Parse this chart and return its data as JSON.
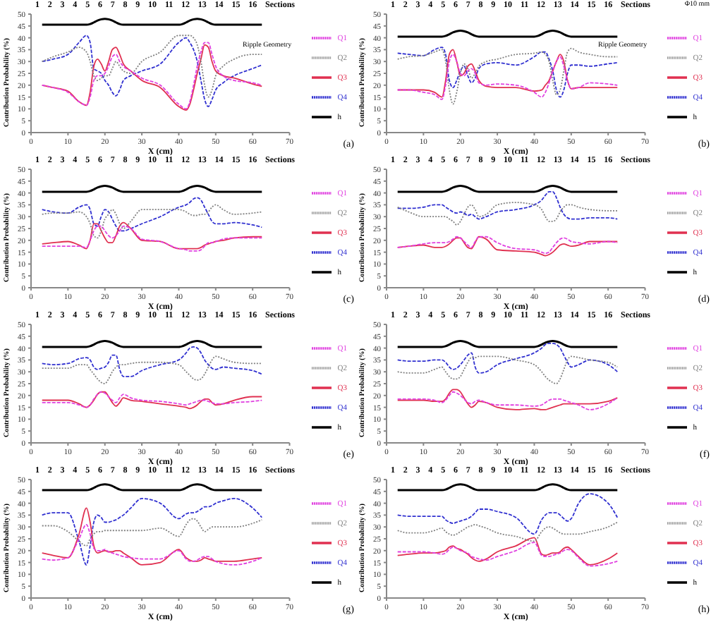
{
  "chart_data": [
    {
      "type": "line",
      "xlabel": "X (cm)",
      "ylabel": "Contribution Probability (%)",
      "xlim": [
        0,
        70
      ],
      "xticks": [
        0,
        10,
        20,
        30,
        40,
        50,
        60,
        70
      ],
      "ylim": [
        0,
        50
      ],
      "yticks": [
        0,
        5,
        10,
        15,
        20,
        25,
        30,
        35,
        40,
        45,
        50
      ],
      "legend": "right",
      "x": [
        3,
        6,
        10,
        13,
        15,
        16,
        17,
        18,
        19,
        20,
        21,
        22,
        23,
        24,
        25,
        27,
        30,
        35,
        40,
        42,
        43,
        44,
        45,
        46,
        47,
        48,
        49,
        50,
        52,
        55,
        60,
        62.5
      ],
      "series": [
        {
          "name": "Q1",
          "color": "#e040e0",
          "line_style": "dashed",
          "values": [
            20,
            19,
            17,
            13,
            11.5,
            15,
            22,
            24,
            24,
            25,
            28,
            32,
            33,
            30,
            28,
            26,
            23,
            20,
            12,
            10,
            13,
            20,
            28,
            34,
            38,
            38,
            33,
            28,
            24,
            22,
            21,
            20
          ]
        },
        {
          "name": "Q2",
          "color": "#808080",
          "line_style": "dotted",
          "values": [
            30,
            32,
            34,
            36,
            34,
            30,
            24,
            22,
            23,
            24,
            24,
            27,
            30,
            28,
            26,
            25,
            30,
            34,
            41,
            41,
            41,
            40,
            37,
            30,
            20,
            15,
            18,
            24,
            28,
            31,
            33,
            33
          ]
        },
        {
          "name": "Q3",
          "color": "#e03050",
          "line_style": "solid",
          "values": [
            20,
            19,
            17.5,
            13,
            11.5,
            17,
            28,
            31,
            29,
            26,
            30,
            35,
            36,
            33,
            29,
            26,
            22,
            19,
            11,
            9.5,
            12,
            18,
            25,
            31,
            37,
            36,
            30,
            26,
            24,
            23,
            20.5,
            19.5
          ]
        },
        {
          "name": "Q4",
          "color": "#3030d0",
          "line_style": "dashed",
          "values": [
            30,
            31,
            33,
            38,
            41,
            38,
            27,
            26,
            25,
            22,
            20,
            17,
            15.5,
            18,
            22,
            24,
            26,
            29,
            38,
            40,
            38,
            35,
            30,
            22,
            14,
            11,
            14,
            18,
            21,
            24,
            27,
            28.5
          ]
        },
        {
          "name": "h",
          "color": "#000000",
          "line_style": "solid",
          "x": [
            3,
            15,
            16,
            17,
            18,
            19,
            20,
            21,
            22,
            23,
            24,
            25,
            40,
            41,
            42,
            43,
            44,
            45,
            46,
            47,
            48,
            49,
            50,
            62.5
          ],
          "values": [
            45.5,
            45.5,
            45.8,
            46.5,
            47.3,
            47.8,
            48,
            47.8,
            47.3,
            46.5,
            45.8,
            45.5,
            45.5,
            45.8,
            46.5,
            47.3,
            47.8,
            48,
            47.8,
            47.3,
            46.5,
            45.8,
            45.5,
            45.5
          ]
        }
      ],
      "annotations": [
        "(a)",
        "1 2 3 4 5 6 7 8 9 10 11 12 13 14 15 16 Sections",
        "Ripple Geometry"
      ]
    },
    {
      "type": "line",
      "xlabel": "X (cm)",
      "ylabel": "Contribution Probability (%)",
      "xlim": [
        0,
        70
      ],
      "xticks": [
        0,
        10,
        20,
        30,
        40,
        50,
        60,
        70
      ],
      "ylim": [
        0,
        50
      ],
      "yticks": [
        0,
        5,
        10,
        15,
        20,
        25,
        30,
        35,
        40,
        45,
        50
      ],
      "legend": "right",
      "x": [
        3,
        6,
        10,
        13,
        15,
        16,
        17,
        18,
        19,
        20,
        21,
        22,
        23,
        24,
        25,
        27,
        30,
        35,
        40,
        42,
        43,
        44,
        45,
        46,
        47,
        48,
        49,
        50,
        52,
        55,
        60,
        62.5
      ],
      "series": [
        {
          "name": "Q1",
          "color": "#e040e0",
          "line_style": "dashed",
          "values": [
            18,
            18,
            17,
            16,
            14,
            20,
            30,
            33,
            30,
            25,
            24,
            26,
            27,
            25,
            21,
            20,
            20.5,
            20,
            17,
            15,
            17,
            21,
            26,
            30,
            32,
            28,
            22,
            18.5,
            19,
            21,
            20.5,
            20
          ]
        },
        {
          "name": "Q2",
          "color": "#808080",
          "line_style": "dotted",
          "values": [
            31,
            32,
            32.5,
            34,
            35,
            30,
            18,
            12,
            17,
            25,
            29,
            27,
            23,
            25,
            28,
            30,
            31,
            33,
            33.5,
            34,
            33,
            30,
            22,
            16,
            18,
            26,
            34,
            35.5,
            34,
            33,
            32,
            32
          ]
        },
        {
          "name": "Q3",
          "color": "#e03050",
          "line_style": "solid",
          "values": [
            18,
            18,
            18,
            17,
            15,
            22,
            33,
            35,
            30,
            24,
            25,
            28,
            29,
            26,
            22,
            19.5,
            19,
            19,
            17.5,
            18,
            20,
            22,
            26,
            30,
            33,
            30,
            22,
            18.5,
            19,
            19,
            19,
            19
          ]
        },
        {
          "name": "Q4",
          "color": "#3030d0",
          "line_style": "dashed",
          "values": [
            33.5,
            33,
            32.5,
            35,
            36,
            33,
            22,
            19,
            22,
            26,
            28,
            24,
            21,
            23,
            27,
            29,
            29.5,
            28.5,
            32,
            34,
            34,
            31,
            26,
            18,
            15,
            18,
            25,
            28.5,
            28.5,
            28,
            29,
            29.5
          ]
        },
        {
          "name": "h",
          "color": "#000000",
          "line_style": "solid",
          "x": [
            3,
            15,
            16,
            17,
            18,
            19,
            20,
            21,
            22,
            23,
            24,
            25,
            40,
            41,
            42,
            43,
            44,
            45,
            46,
            47,
            48,
            49,
            50,
            62.5
          ],
          "values": [
            40.5,
            40.5,
            40.8,
            41.5,
            42.3,
            42.8,
            43,
            42.8,
            42.3,
            41.5,
            40.8,
            40.5,
            40.5,
            40.8,
            41.5,
            42.3,
            42.8,
            43,
            42.8,
            42.3,
            41.5,
            40.8,
            40.5,
            40.5
          ]
        }
      ],
      "annotations": [
        "(b)",
        "1 2 3 4 5 6 7 8 9 10 11 12 13 14 15 16 Sections",
        "Ripple Geometry",
        "Φ10 mm"
      ]
    },
    {
      "type": "line",
      "xlabel": "X (cm)",
      "ylabel": "Contribution Probability (%)",
      "xlim": [
        0,
        70
      ],
      "xticks": [
        0,
        10,
        20,
        30,
        40,
        50,
        60,
        70
      ],
      "ylim": [
        0,
        50
      ],
      "yticks": [
        0,
        5,
        10,
        15,
        20,
        25,
        30,
        35,
        40,
        45,
        50
      ],
      "legend": "right",
      "x": [
        3,
        6,
        10,
        13,
        15,
        16,
        17,
        18,
        19,
        20,
        21,
        22,
        23,
        24,
        25,
        27,
        30,
        35,
        40,
        42,
        43,
        44,
        45,
        46,
        47,
        48,
        49,
        50,
        52,
        55,
        60,
        62.5
      ],
      "series": [
        {
          "name": "Q1",
          "color": "#e040e0",
          "line_style": "dashed",
          "values": [
            17.5,
            17.5,
            17.5,
            17.5,
            17,
            20,
            24,
            26,
            26,
            24,
            22,
            21,
            22,
            24,
            26,
            25,
            20.5,
            19.5,
            16.5,
            16,
            15.5,
            15.5,
            15.5,
            16,
            17.5,
            19,
            19,
            19.5,
            20.5,
            21,
            21,
            21
          ]
        },
        {
          "name": "Q2",
          "color": "#808080",
          "line_style": "dotted",
          "values": [
            31,
            31.5,
            31.5,
            32,
            30,
            27,
            22,
            21,
            24,
            29,
            31,
            33,
            31,
            27,
            25,
            28,
            33,
            33,
            33,
            32,
            31,
            30.5,
            30.5,
            31,
            31,
            32,
            34,
            35,
            33,
            31,
            31.5,
            32
          ]
        },
        {
          "name": "Q3",
          "color": "#e03050",
          "line_style": "solid",
          "values": [
            18.5,
            19,
            19.5,
            18,
            16.5,
            20,
            27,
            27,
            24,
            21,
            19,
            19,
            22,
            26,
            27.5,
            25,
            20,
            19.5,
            16.5,
            16.5,
            16.5,
            16.5,
            16.5,
            17,
            18,
            18.5,
            19,
            19.5,
            20,
            21,
            21.5,
            21.5
          ]
        },
        {
          "name": "Q4",
          "color": "#3030d0",
          "line_style": "dashed",
          "values": [
            33,
            32,
            31.5,
            34,
            35,
            33,
            27,
            26,
            30,
            33,
            32,
            29,
            26,
            24,
            24,
            25,
            27,
            30,
            34,
            35,
            36,
            37.5,
            38,
            37,
            34,
            31,
            28,
            27,
            27,
            27.5,
            26.5,
            25.5
          ]
        },
        {
          "name": "h",
          "color": "#000000",
          "line_style": "solid",
          "x": [
            3,
            15,
            16,
            17,
            18,
            19,
            20,
            21,
            22,
            23,
            24,
            25,
            40,
            41,
            42,
            43,
            44,
            45,
            46,
            47,
            48,
            49,
            50,
            62.5
          ],
          "values": [
            40.5,
            40.5,
            40.8,
            41.5,
            42.3,
            42.8,
            43,
            42.8,
            42.3,
            41.5,
            40.8,
            40.5,
            40.5,
            40.8,
            41.5,
            42.3,
            42.8,
            43,
            42.8,
            42.3,
            41.5,
            40.8,
            40.5,
            40.5
          ]
        }
      ],
      "annotations": [
        "(c)",
        "1 2 3 4 5 6 7 8 9 10 11 12 13 14 15 16 Sections"
      ]
    },
    {
      "type": "line",
      "xlabel": "X (cm)",
      "ylabel": "Contribution Probability (%)",
      "xlim": [
        0,
        70
      ],
      "xticks": [
        0,
        10,
        20,
        30,
        40,
        50,
        60,
        70
      ],
      "ylim": [
        0,
        50
      ],
      "yticks": [
        0,
        5,
        10,
        15,
        20,
        25,
        30,
        35,
        40,
        45,
        50
      ],
      "legend": "right",
      "x": [
        3,
        6,
        10,
        13,
        15,
        16,
        17,
        18,
        19,
        20,
        21,
        22,
        23,
        24,
        25,
        27,
        30,
        35,
        40,
        42,
        43,
        44,
        45,
        46,
        47,
        48,
        49,
        50,
        52,
        55,
        60,
        62.5
      ],
      "series": [
        {
          "name": "Q1",
          "color": "#e040e0",
          "line_style": "dashed",
          "values": [
            17,
            17.5,
            18.5,
            19,
            19,
            19,
            19.5,
            20.5,
            21.5,
            21,
            19.5,
            18,
            17,
            19.5,
            21.5,
            21.5,
            19,
            16.5,
            16,
            15,
            14.5,
            15,
            17,
            19,
            20.5,
            21,
            20.5,
            19.5,
            19,
            18.5,
            19.5,
            19
          ]
        },
        {
          "name": "Q2",
          "color": "#808080",
          "line_style": "dotted",
          "values": [
            34,
            32,
            30,
            30,
            30,
            30,
            29,
            28,
            26.5,
            28,
            31,
            34,
            35,
            33,
            30,
            31,
            35,
            36,
            35,
            33,
            30,
            28,
            28,
            29,
            32,
            34,
            35,
            35,
            34,
            33,
            32.5,
            32.5
          ]
        },
        {
          "name": "Q3",
          "color": "#e03050",
          "line_style": "solid",
          "values": [
            17,
            17.5,
            18,
            17,
            17,
            17.5,
            18.5,
            20,
            21,
            21,
            19,
            17,
            16.5,
            19,
            21.5,
            20.5,
            16,
            15.5,
            15,
            14,
            13.5,
            14,
            15,
            16.5,
            18,
            18.5,
            18,
            17.5,
            18,
            19.5,
            19.5,
            19.5
          ]
        },
        {
          "name": "Q4",
          "color": "#3030d0",
          "line_style": "dashed",
          "values": [
            33.5,
            33.5,
            34,
            35,
            35,
            34,
            33,
            32,
            31.5,
            32,
            31.5,
            30.5,
            31,
            30,
            29,
            30,
            32,
            33,
            35,
            37,
            39,
            40.5,
            40.5,
            38,
            34,
            31,
            29.5,
            29,
            29,
            29.5,
            29.5,
            29
          ]
        },
        {
          "name": "h",
          "color": "#000000",
          "line_style": "solid",
          "x": [
            3,
            15,
            16,
            17,
            18,
            19,
            20,
            21,
            22,
            23,
            24,
            25,
            40,
            41,
            42,
            43,
            44,
            45,
            46,
            47,
            48,
            49,
            50,
            62.5
          ],
          "values": [
            40.5,
            40.5,
            40.8,
            41.5,
            42.3,
            42.8,
            43,
            42.8,
            42.3,
            41.5,
            40.8,
            40.5,
            40.5,
            40.8,
            41.5,
            42.3,
            42.8,
            43,
            42.8,
            42.3,
            41.5,
            40.8,
            40.5,
            40.5
          ]
        }
      ],
      "annotations": [
        "(d)",
        "1 2 3 4 5 6 7 8 9 10 11 12 13 14 15 16 Sections"
      ]
    },
    {
      "type": "line",
      "xlabel": "X (cm)",
      "ylabel": "Contribution Probability (%)",
      "xlim": [
        0,
        70
      ],
      "xticks": [
        0,
        10,
        20,
        30,
        40,
        50,
        60,
        70
      ],
      "ylim": [
        0,
        50
      ],
      "yticks": [
        0,
        5,
        10,
        15,
        20,
        25,
        30,
        35,
        40,
        45,
        50
      ],
      "legend": "right",
      "x": [
        3,
        6,
        10,
        13,
        15,
        16,
        17,
        18,
        19,
        20,
        21,
        22,
        23,
        24,
        25,
        27,
        30,
        35,
        40,
        42,
        43,
        44,
        45,
        46,
        47,
        48,
        49,
        50,
        52,
        55,
        60,
        62.5
      ],
      "series": [
        {
          "name": "Q1",
          "color": "#e040e0",
          "line_style": "dashed",
          "values": [
            17,
            17,
            17,
            16,
            15,
            16,
            18.5,
            20.5,
            21.5,
            21,
            19.5,
            18,
            17,
            19,
            20.5,
            19,
            18,
            17.5,
            16.5,
            16,
            16.5,
            17,
            17.5,
            18,
            18,
            17.5,
            17,
            16.5,
            16.5,
            17,
            17.5,
            18
          ]
        },
        {
          "name": "Q2",
          "color": "#808080",
          "line_style": "dotted",
          "values": [
            31.5,
            31.5,
            31.5,
            33,
            33,
            31,
            29,
            27,
            25.5,
            25,
            27,
            30,
            32,
            33,
            33,
            33.5,
            34,
            34,
            33,
            30,
            28.5,
            27,
            26.5,
            27,
            29,
            32,
            35,
            36.5,
            35.5,
            34,
            33.5,
            33.5
          ]
        },
        {
          "name": "Q3",
          "color": "#e03050",
          "line_style": "solid",
          "values": [
            18,
            18,
            18,
            16.5,
            15,
            16,
            18,
            20.5,
            21.5,
            21.5,
            19.5,
            17,
            15.5,
            17,
            19,
            18,
            17.5,
            16.5,
            15.5,
            15,
            14.5,
            15,
            16,
            17.5,
            18.5,
            18.5,
            17,
            16,
            16.5,
            18,
            19.5,
            19.5
          ]
        },
        {
          "name": "Q4",
          "color": "#3030d0",
          "line_style": "dashed",
          "values": [
            33.5,
            33,
            33.5,
            35.5,
            36,
            35,
            32,
            31,
            31.5,
            32,
            34,
            37,
            37,
            31,
            28,
            28,
            30.5,
            33,
            35,
            38,
            40,
            40.5,
            40,
            38,
            35,
            33,
            31.5,
            31,
            32,
            31.5,
            30.5,
            29
          ]
        },
        {
          "name": "h",
          "color": "#000000",
          "line_style": "solid",
          "x": [
            3,
            15,
            16,
            17,
            18,
            19,
            20,
            21,
            22,
            23,
            24,
            25,
            40,
            41,
            42,
            43,
            44,
            45,
            46,
            47,
            48,
            49,
            50,
            62.5
          ],
          "values": [
            40.5,
            40.5,
            40.8,
            41.5,
            42.3,
            42.8,
            43,
            42.8,
            42.3,
            41.5,
            40.8,
            40.5,
            40.5,
            40.8,
            41.5,
            42.3,
            42.8,
            43,
            42.8,
            42.3,
            41.5,
            40.8,
            40.5,
            40.5
          ]
        }
      ],
      "annotations": [
        "(e)",
        "1 2 3 4 5 6 7 8 9 10 11 12 13 14 15 16 Sections"
      ]
    },
    {
      "type": "line",
      "xlabel": "X (cm)",
      "ylabel": "Contribution Probability (%)",
      "xlim": [
        0,
        70
      ],
      "xticks": [
        0,
        10,
        20,
        30,
        40,
        50,
        60,
        70
      ],
      "ylim": [
        0,
        50
      ],
      "yticks": [
        0,
        5,
        10,
        15,
        20,
        25,
        30,
        35,
        40,
        45,
        50
      ],
      "legend": "right",
      "x": [
        3,
        6,
        10,
        13,
        15,
        16,
        17,
        18,
        19,
        20,
        21,
        22,
        23,
        24,
        25,
        27,
        30,
        35,
        40,
        42,
        43,
        44,
        45,
        46,
        47,
        48,
        49,
        50,
        52,
        55,
        60,
        62.5
      ],
      "series": [
        {
          "name": "Q1",
          "color": "#e040e0",
          "line_style": "dashed",
          "values": [
            18.5,
            18.5,
            18.5,
            18,
            17,
            18,
            20,
            21.5,
            21,
            20,
            18.5,
            17,
            16.5,
            17.5,
            18,
            17,
            16,
            16,
            15.5,
            16,
            17,
            18,
            18.5,
            18.5,
            18.5,
            18,
            17.5,
            17,
            16,
            14,
            16.5,
            19
          ]
        },
        {
          "name": "Q2",
          "color": "#808080",
          "line_style": "dotted",
          "values": [
            30,
            29.5,
            29.5,
            31,
            32,
            30,
            28,
            27,
            27,
            28,
            31,
            34,
            36,
            36,
            36.5,
            36.5,
            36.5,
            35,
            33,
            30,
            28,
            26.5,
            25.5,
            25,
            27,
            31,
            35,
            36.5,
            36,
            35,
            34,
            32
          ]
        },
        {
          "name": "Q3",
          "color": "#e03050",
          "line_style": "solid",
          "values": [
            18,
            18,
            18,
            17.5,
            17.5,
            18.5,
            21,
            22.5,
            22.5,
            21.5,
            19,
            16.5,
            15,
            16,
            17.5,
            17,
            15,
            14,
            14.5,
            14,
            14,
            14.5,
            15,
            15.5,
            16,
            16.5,
            16.5,
            16.5,
            16.5,
            16.5,
            17.5,
            19
          ]
        },
        {
          "name": "Q4",
          "color": "#3030d0",
          "line_style": "dashed",
          "values": [
            35,
            34.5,
            34.5,
            35,
            35,
            34,
            32,
            31,
            31.5,
            33,
            35,
            37,
            38,
            32,
            29.5,
            30,
            33,
            35.5,
            38,
            40,
            41.5,
            42,
            42,
            41.5,
            40,
            37,
            34,
            32,
            33,
            35,
            33,
            30
          ]
        },
        {
          "name": "h",
          "color": "#000000",
          "line_style": "solid",
          "x": [
            3,
            15,
            16,
            17,
            18,
            19,
            20,
            21,
            22,
            23,
            24,
            25,
            40,
            41,
            42,
            43,
            44,
            45,
            46,
            47,
            48,
            49,
            50,
            62.5
          ],
          "values": [
            40.5,
            40.5,
            40.8,
            41.5,
            42.3,
            42.8,
            43,
            42.8,
            42.3,
            41.5,
            40.8,
            40.5,
            40.5,
            40.8,
            41.5,
            42.3,
            42.8,
            43,
            42.8,
            42.3,
            41.5,
            40.8,
            40.5,
            40.5
          ]
        }
      ],
      "annotations": [
        "(f)",
        "1 2 3 4 5 6 7 8 9 10 11 12 13 14 15 16 Sections"
      ]
    },
    {
      "type": "line",
      "xlabel": "X (cm)",
      "ylabel": "Contribution Probability (%)",
      "xlim": [
        0,
        70
      ],
      "xticks": [
        0,
        10,
        20,
        30,
        40,
        50,
        60,
        70
      ],
      "ylim": [
        0,
        50
      ],
      "yticks": [
        0,
        5,
        10,
        15,
        20,
        25,
        30,
        35,
        40,
        45,
        50
      ],
      "legend": "right",
      "x": [
        3,
        6,
        10,
        13,
        15,
        16,
        17,
        18,
        19,
        20,
        21,
        22,
        23,
        24,
        25,
        27,
        30,
        35,
        40,
        42,
        43,
        44,
        45,
        46,
        47,
        48,
        49,
        50,
        52,
        55,
        60,
        62.5
      ],
      "series": [
        {
          "name": "Q1",
          "color": "#e040e0",
          "line_style": "dashed",
          "values": [
            16.5,
            16,
            17,
            25,
            31,
            27,
            21,
            20,
            20,
            20.5,
            19.5,
            19,
            18.5,
            18,
            17.5,
            17,
            16.5,
            16.5,
            20,
            16.5,
            15.5,
            15.5,
            16,
            17,
            17.5,
            17.5,
            16.5,
            15.5,
            14.5,
            14,
            15.5,
            17
          ]
        },
        {
          "name": "Q2",
          "color": "#808080",
          "line_style": "dotted",
          "values": [
            30.5,
            30.5,
            28,
            24,
            22,
            25,
            27,
            28,
            28,
            28.5,
            28.5,
            28.5,
            28.5,
            28.5,
            28.5,
            28.5,
            28.5,
            29.5,
            26,
            31,
            33,
            33.5,
            32.5,
            30,
            28,
            29,
            30,
            30,
            30,
            30,
            31.5,
            33
          ]
        },
        {
          "name": "Q3",
          "color": "#e03050",
          "line_style": "solid",
          "values": [
            19,
            18,
            17,
            27,
            38,
            32,
            22,
            19,
            19.5,
            20,
            19.5,
            19.5,
            20,
            20,
            19,
            17,
            14,
            15,
            20.5,
            17,
            16,
            15.5,
            15.5,
            16,
            17,
            16.5,
            16,
            15.5,
            15.5,
            15.5,
            16.5,
            17
          ]
        },
        {
          "name": "Q4",
          "color": "#3030d0",
          "line_style": "dashed",
          "values": [
            35,
            36,
            36,
            24,
            14,
            22,
            32,
            35,
            34,
            32,
            32,
            32.5,
            33,
            34,
            35,
            38,
            42,
            40,
            33.5,
            35.5,
            36,
            36,
            36.5,
            37.5,
            38.5,
            38.5,
            39,
            40,
            41,
            42,
            38,
            34
          ]
        },
        {
          "name": "h",
          "color": "#000000",
          "line_style": "solid",
          "x": [
            3,
            15,
            16,
            17,
            18,
            19,
            20,
            21,
            22,
            23,
            24,
            25,
            40,
            41,
            42,
            43,
            44,
            45,
            46,
            47,
            48,
            49,
            50,
            62.5
          ],
          "values": [
            45.5,
            45.5,
            45.8,
            46.5,
            47.3,
            47.8,
            48,
            47.8,
            47.3,
            46.5,
            45.8,
            45.5,
            45.5,
            45.8,
            46.5,
            47.3,
            47.8,
            48,
            47.8,
            47.3,
            46.5,
            45.8,
            45.5,
            45.5
          ]
        }
      ],
      "annotations": [
        "(g)",
        "1 2 3 4 5 6 7 8 9 10 11 12 13 14 15 16 Sections"
      ]
    },
    {
      "type": "line",
      "xlabel": "X (cm)",
      "ylabel": "Contribution Probability (%)",
      "xlim": [
        0,
        70
      ],
      "xticks": [
        0,
        10,
        20,
        30,
        40,
        50,
        60,
        70
      ],
      "ylim": [
        0,
        50
      ],
      "yticks": [
        0,
        5,
        10,
        15,
        20,
        25,
        30,
        35,
        40,
        45,
        50
      ],
      "legend": "right",
      "x": [
        3,
        6,
        10,
        13,
        15,
        16,
        17,
        18,
        19,
        20,
        21,
        22,
        23,
        24,
        25,
        27,
        30,
        35,
        40,
        42,
        43,
        44,
        45,
        46,
        47,
        48,
        49,
        50,
        52,
        55,
        60,
        62.5
      ],
      "series": [
        {
          "name": "Q1",
          "color": "#e040e0",
          "line_style": "dashed",
          "values": [
            19.5,
            19.5,
            19.5,
            19,
            18.5,
            19,
            20.5,
            21.5,
            21,
            20,
            19.5,
            19,
            17.5,
            17,
            16.5,
            16,
            17.5,
            20,
            23.5,
            18,
            17.5,
            17.5,
            18,
            18.5,
            19,
            20,
            20.5,
            20,
            17,
            13.5,
            14.5,
            15.5
          ]
        },
        {
          "name": "Q2",
          "color": "#808080",
          "line_style": "dotted",
          "values": [
            28.5,
            27.5,
            27.5,
            28.5,
            29.5,
            28,
            27,
            26.5,
            27,
            28,
            29,
            30,
            30.5,
            31,
            30.5,
            29.5,
            27.5,
            26,
            24,
            28,
            29.5,
            30,
            29.5,
            28.5,
            27.5,
            27,
            27,
            27,
            27,
            28,
            30,
            32
          ]
        },
        {
          "name": "Q3",
          "color": "#e03050",
          "line_style": "solid",
          "values": [
            18,
            18.5,
            19,
            19,
            19.5,
            20,
            21.5,
            22,
            21,
            20.5,
            19.5,
            18.5,
            17,
            16,
            15.5,
            16.5,
            19.5,
            22,
            25.5,
            18.5,
            18,
            18.5,
            19,
            19,
            19.5,
            21,
            21.5,
            20.5,
            17.5,
            14,
            16.5,
            19
          ]
        },
        {
          "name": "Q4",
          "color": "#3030d0",
          "line_style": "dashed",
          "values": [
            35,
            34.5,
            34.5,
            34.5,
            34.5,
            33,
            32,
            31.5,
            32,
            32.5,
            33,
            33.5,
            34.5,
            36,
            37.5,
            37.5,
            36.5,
            34,
            27,
            33,
            35,
            36,
            36,
            36,
            35,
            33.5,
            32.5,
            33.5,
            40,
            44,
            40,
            34
          ]
        },
        {
          "name": "h",
          "color": "#000000",
          "line_style": "solid",
          "x": [
            3,
            15,
            16,
            17,
            18,
            19,
            20,
            21,
            22,
            23,
            24,
            25,
            40,
            41,
            42,
            43,
            44,
            45,
            46,
            47,
            48,
            49,
            50,
            62.5
          ],
          "values": [
            45.5,
            45.5,
            45.8,
            46.5,
            47.3,
            47.8,
            48,
            47.8,
            47.3,
            46.5,
            45.8,
            45.5,
            45.5,
            45.8,
            46.5,
            47.3,
            47.8,
            48,
            47.8,
            47.3,
            46.5,
            45.8,
            45.5,
            45.5
          ]
        }
      ],
      "annotations": [
        "(h)",
        "1 2 3 4 5 6 7 8 9 10 11 12 13 14 15 16 Sections"
      ]
    }
  ]
}
